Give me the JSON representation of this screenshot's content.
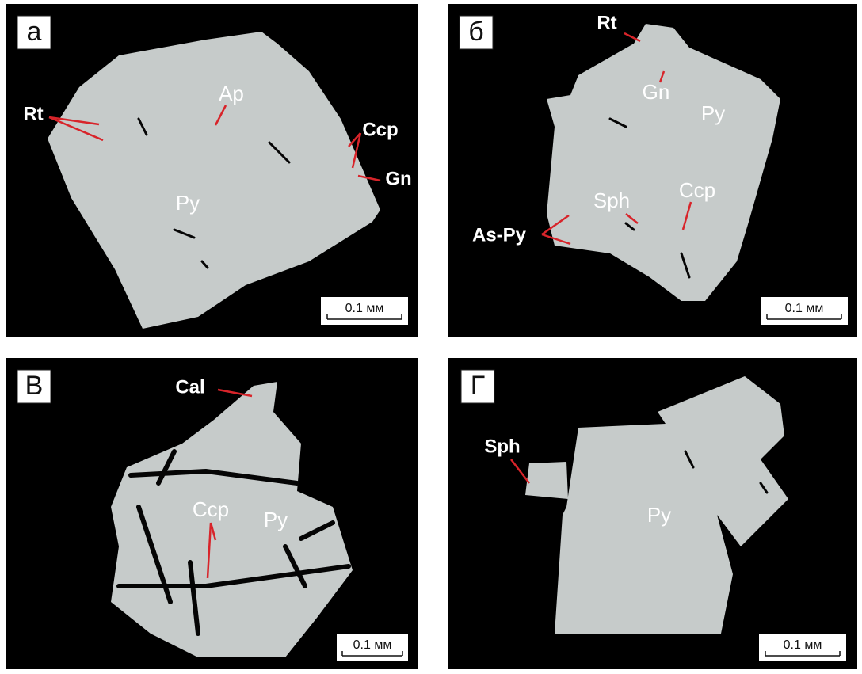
{
  "panels": [
    {
      "letter": "а",
      "labels": [
        "Rt",
        "Ap",
        "Ccp",
        "Gn",
        "Py"
      ],
      "scale_bar": "0.1 мм"
    },
    {
      "letter": "б",
      "labels": [
        "Rt",
        "Gn",
        "Py",
        "Sph",
        "Ccp",
        "As-Py"
      ],
      "scale_bar": "0.1 мм"
    },
    {
      "letter": "В",
      "labels": [
        "Cal",
        "Ccp",
        "Py"
      ],
      "scale_bar": "0.1 мм"
    },
    {
      "letter": "Г",
      "labels": [
        "Sph",
        "Py"
      ],
      "scale_bar": "0.1 мм"
    }
  ]
}
